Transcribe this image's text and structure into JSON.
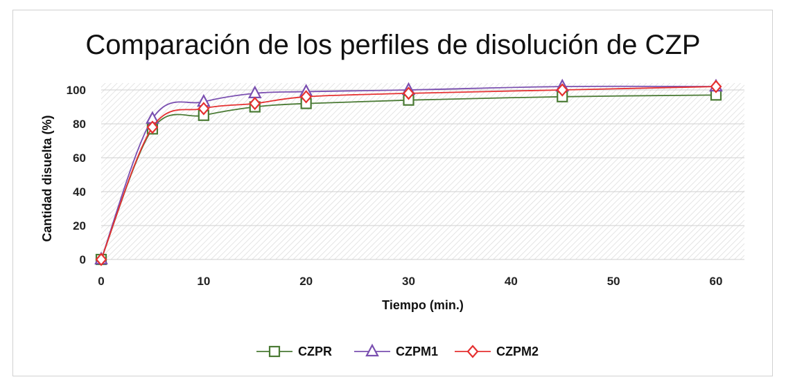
{
  "chart_data": {
    "type": "line",
    "title": "Comparación de los perfiles de disolución de CZP",
    "xlabel": "Tiempo (min.)",
    "ylabel": "Cantidad disuelta (%)",
    "xlim": [
      0,
      60
    ],
    "ylim": [
      0,
      100
    ],
    "xticks": [
      0,
      10,
      20,
      30,
      40,
      50,
      60
    ],
    "yticks": [
      0,
      20,
      40,
      60,
      80,
      100
    ],
    "grid": true,
    "legend_position": "bottom",
    "x": [
      0,
      5,
      10,
      15,
      20,
      30,
      45,
      60
    ],
    "series": [
      {
        "name": "CZPR",
        "color": "#4a7a34",
        "marker": "square",
        "values": [
          0,
          77,
          85,
          90,
          92,
          94,
          96,
          97
        ]
      },
      {
        "name": "CZPM1",
        "color": "#7a4fb0",
        "marker": "triangle",
        "values": [
          0,
          83,
          93,
          98,
          99,
          100,
          102,
          102
        ]
      },
      {
        "name": "CZPM2",
        "color": "#e53030",
        "marker": "diamond",
        "values": [
          0,
          78,
          89,
          92,
          96,
          98,
          100,
          102
        ]
      }
    ]
  }
}
